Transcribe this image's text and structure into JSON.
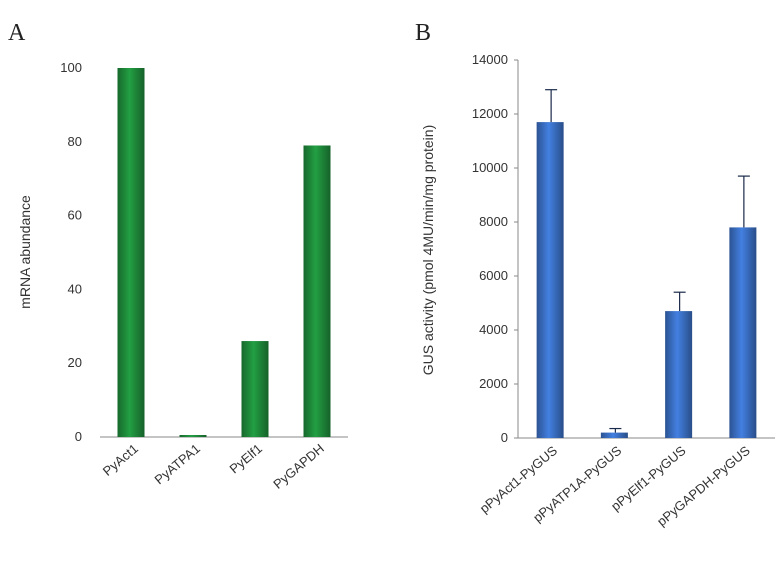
{
  "chart_data": [
    {
      "panel": "A",
      "type": "bar",
      "categories": [
        "PyAct1",
        "PyATPA1",
        "PyElf1",
        "PyGAPDH"
      ],
      "values": [
        100,
        0.5,
        26,
        79
      ],
      "ylabel": "mRNA abundance",
      "ylim": [
        0,
        100
      ],
      "yticks": [
        0,
        20,
        40,
        60,
        80,
        100
      ],
      "bar_color": "#1e8a3a",
      "grid": false
    },
    {
      "panel": "B",
      "type": "bar",
      "categories": [
        "pPyAct1-PyGUS",
        "pPyATP1A-PyGUS",
        "pPyElf1-PyGUS",
        "pPyGAPDH-PyGUS"
      ],
      "values": [
        11700,
        200,
        4700,
        7800
      ],
      "error": [
        1200,
        150,
        700,
        1900
      ],
      "ylabel": "GUS activity (pmol 4MU/min/mg protein)",
      "ylim": [
        0,
        14000
      ],
      "yticks": [
        0,
        2000,
        4000,
        6000,
        8000,
        10000,
        12000,
        14000
      ],
      "bar_color": "#3a6fc4",
      "grid": false
    }
  ]
}
